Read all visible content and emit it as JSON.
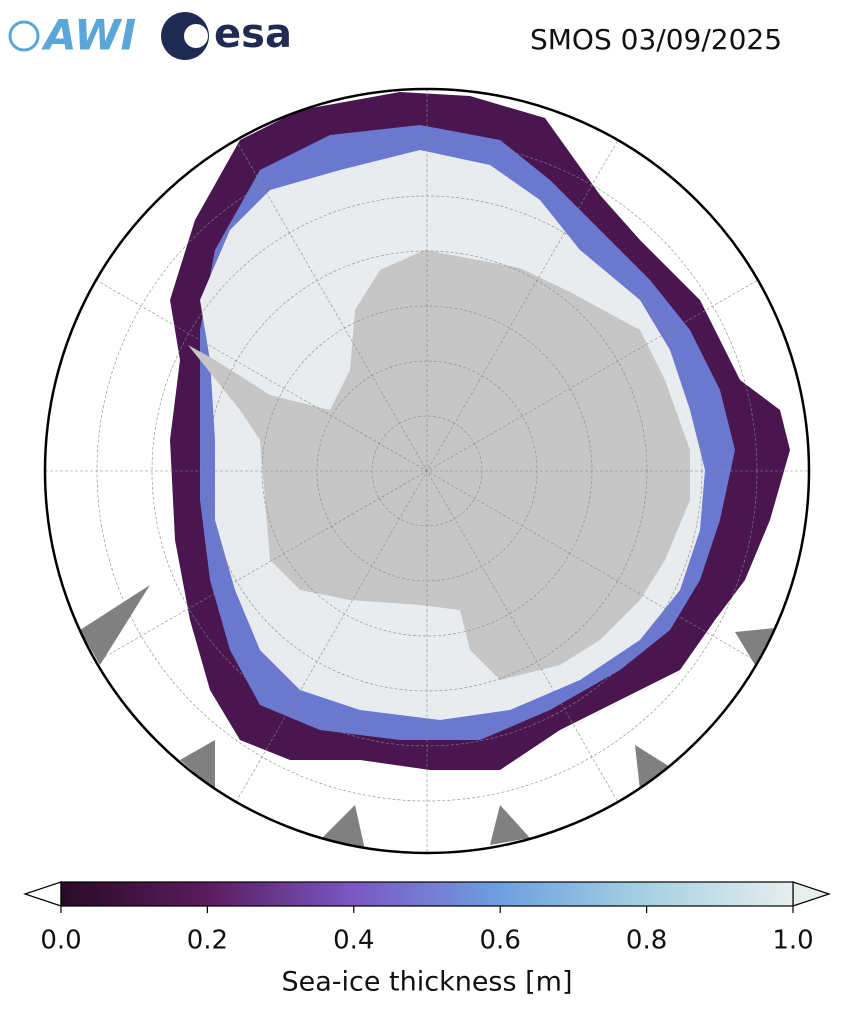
{
  "header": {
    "logos": [
      "AWI",
      "esa"
    ],
    "title": "SMOS 03/09/2025"
  },
  "colorbar": {
    "label": "Sea-ice thickness [m]",
    "lim": [
      0,
      1
    ],
    "ticks": [
      {
        "value": 0,
        "label": "0.0"
      },
      0.2,
      0.4,
      0.6,
      0.8,
      {
        "value": 1,
        "label": "1.0"
      }
    ],
    "colors": [
      "#2a0a26",
      "#5a1c5e",
      "#7a58c4",
      "#6f9fe0",
      "#a6d1e2",
      "#e6eeee"
    ]
  }
}
